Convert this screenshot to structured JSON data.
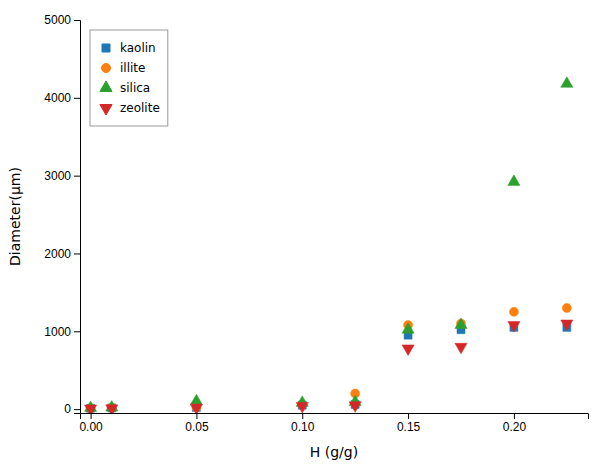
{
  "chart_data": {
    "type": "scatter",
    "xlabel": "H (g/g)",
    "ylabel": "Diameter(μm)",
    "x": [
      0.0,
      0.01,
      0.05,
      0.1,
      0.125,
      0.15,
      0.175,
      0.2,
      0.225
    ],
    "series": [
      {
        "name": "kaolin",
        "marker": "square",
        "values": [
          10,
          15,
          20,
          50,
          60,
          950,
          1020,
          1050,
          1050
        ]
      },
      {
        "name": "illite",
        "marker": "circle",
        "values": [
          12,
          18,
          25,
          60,
          200,
          1080,
          1100,
          1250,
          1300
        ]
      },
      {
        "name": "silica",
        "marker": "triangle-up",
        "values": [
          15,
          20,
          100,
          80,
          90,
          1020,
          1080,
          2920,
          4180
        ]
      },
      {
        "name": "zeolite",
        "marker": "triangle-down",
        "values": [
          8,
          10,
          20,
          40,
          50,
          780,
          800,
          1080,
          1100
        ]
      }
    ],
    "xlim": [
      -0.005,
      0.235
    ],
    "ylim": [
      -50,
      5000
    ],
    "xticks": [
      {
        "value": 0.0,
        "label": "0.00"
      },
      {
        "value": 0.05,
        "label": "0.05"
      },
      {
        "value": 0.1,
        "label": "0.10"
      },
      {
        "value": 0.15,
        "label": "0.15"
      },
      {
        "value": 0.2,
        "label": "0.20"
      }
    ],
    "yticks": [
      0,
      1000,
      2000,
      3000,
      4000,
      5000
    ],
    "legend": "upper left",
    "grid": false
  }
}
